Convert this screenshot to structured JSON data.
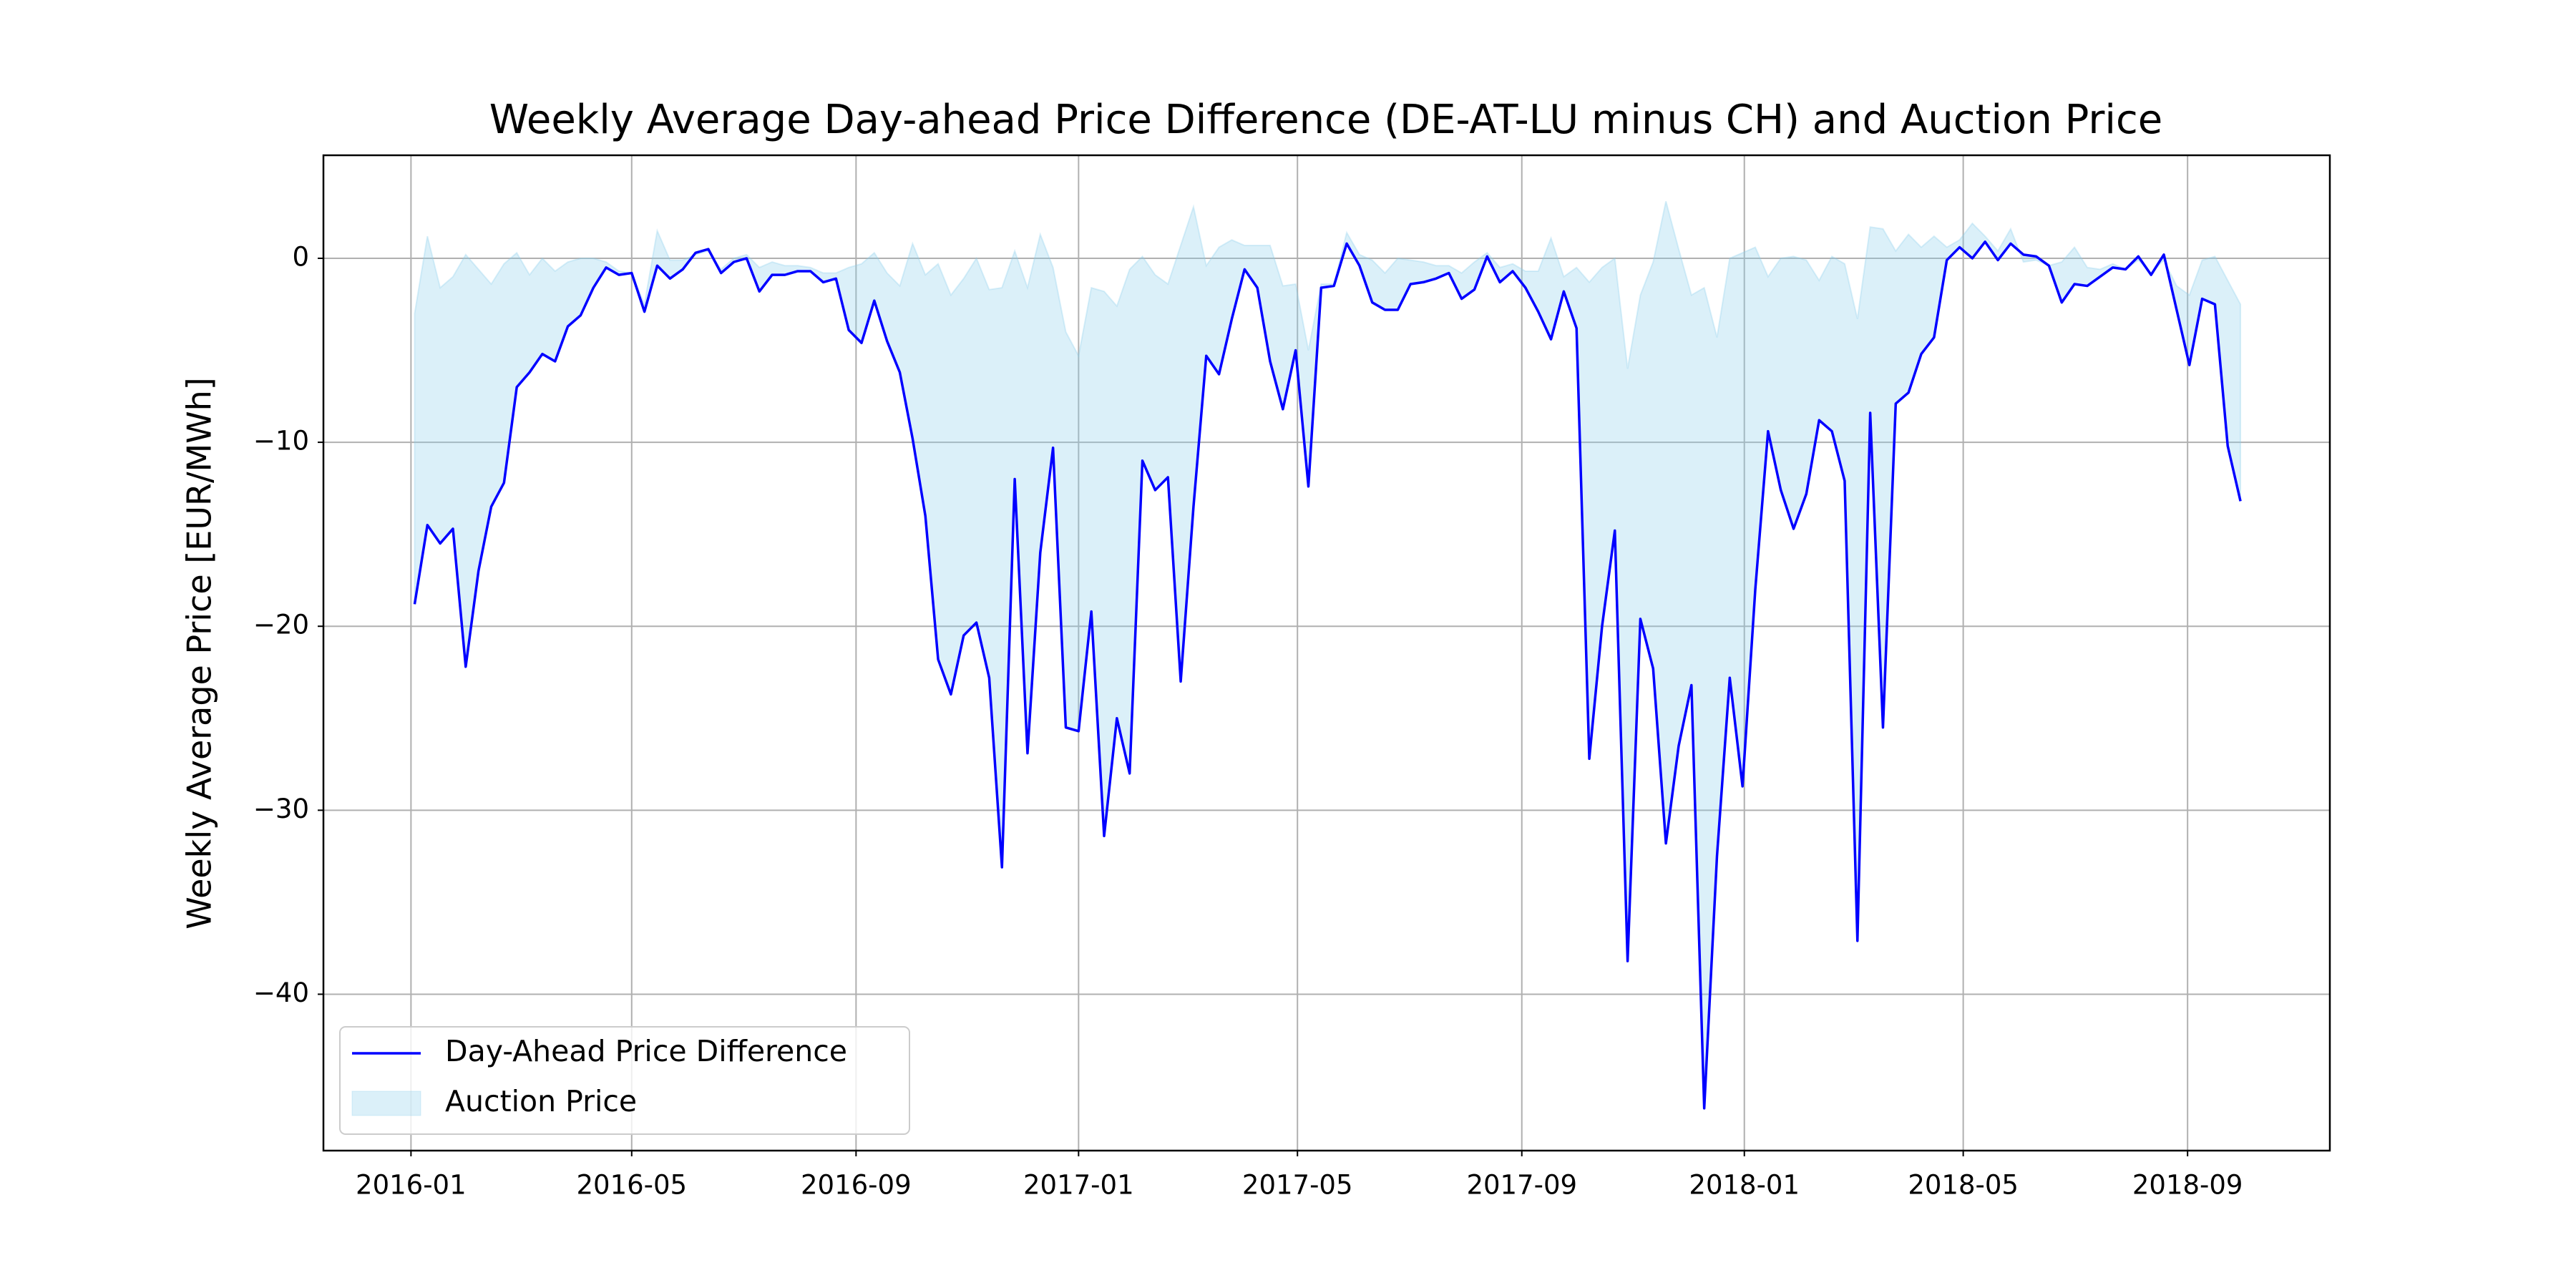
{
  "chart_data": {
    "type": "line",
    "title": "Weekly Average Day-ahead Price Difference (DE-AT-LU minus CH) and Auction Price",
    "y_label": "Weekly Average Price [EUR/MWh]",
    "x": [
      "2016-01-03",
      "2016-01-10",
      "2016-01-17",
      "2016-01-24",
      "2016-01-31",
      "2016-02-07",
      "2016-02-14",
      "2016-02-21",
      "2016-02-28",
      "2016-03-06",
      "2016-03-13",
      "2016-03-20",
      "2016-03-27",
      "2016-04-03",
      "2016-04-10",
      "2016-04-17",
      "2016-04-24",
      "2016-05-01",
      "2016-05-08",
      "2016-05-15",
      "2016-05-22",
      "2016-05-29",
      "2016-06-05",
      "2016-06-12",
      "2016-06-19",
      "2016-06-26",
      "2016-07-03",
      "2016-07-10",
      "2016-07-17",
      "2016-07-24",
      "2016-07-31",
      "2016-08-07",
      "2016-08-14",
      "2016-08-21",
      "2016-08-28",
      "2016-09-04",
      "2016-09-11",
      "2016-09-18",
      "2016-09-25",
      "2016-10-02",
      "2016-10-09",
      "2016-10-16",
      "2016-10-23",
      "2016-10-30",
      "2016-11-06",
      "2016-11-13",
      "2016-11-20",
      "2016-11-27",
      "2016-12-04",
      "2016-12-11",
      "2016-12-18",
      "2016-12-25",
      "2017-01-01",
      "2017-01-08",
      "2017-01-15",
      "2017-01-22",
      "2017-01-29",
      "2017-02-05",
      "2017-02-12",
      "2017-02-19",
      "2017-02-26",
      "2017-03-05",
      "2017-03-12",
      "2017-03-19",
      "2017-03-26",
      "2017-04-02",
      "2017-04-09",
      "2017-04-16",
      "2017-04-23",
      "2017-04-30",
      "2017-05-07",
      "2017-05-14",
      "2017-05-21",
      "2017-05-28",
      "2017-06-04",
      "2017-06-11",
      "2017-06-18",
      "2017-06-25",
      "2017-07-02",
      "2017-07-09",
      "2017-07-16",
      "2017-07-23",
      "2017-07-30",
      "2017-08-06",
      "2017-08-13",
      "2017-08-20",
      "2017-08-27",
      "2017-09-03",
      "2017-09-10",
      "2017-09-17",
      "2017-09-24",
      "2017-10-01",
      "2017-10-08",
      "2017-10-15",
      "2017-10-22",
      "2017-10-29",
      "2017-11-05",
      "2017-11-12",
      "2017-11-19",
      "2017-11-26",
      "2017-12-03",
      "2017-12-10",
      "2017-12-17",
      "2017-12-24",
      "2017-12-31",
      "2018-01-07",
      "2018-01-14",
      "2018-01-21",
      "2018-01-28",
      "2018-02-04",
      "2018-02-11",
      "2018-02-18",
      "2018-02-25",
      "2018-03-04",
      "2018-03-11",
      "2018-03-18",
      "2018-03-25",
      "2018-04-01",
      "2018-04-08",
      "2018-04-15",
      "2018-04-22",
      "2018-04-29",
      "2018-05-06",
      "2018-05-13",
      "2018-05-20",
      "2018-05-27",
      "2018-06-03",
      "2018-06-10",
      "2018-06-17",
      "2018-06-24",
      "2018-07-01",
      "2018-07-08",
      "2018-07-15",
      "2018-07-22",
      "2018-07-29",
      "2018-08-05",
      "2018-08-12",
      "2018-08-19",
      "2018-08-26",
      "2018-09-02",
      "2018-09-09",
      "2018-09-16",
      "2018-09-23",
      "2018-09-30"
    ],
    "series": [
      {
        "name": "Day-Ahead Price Difference",
        "kind": "line",
        "color": "#0000ff",
        "values": [
          -18.8,
          -14.5,
          -15.5,
          -14.7,
          -22.2,
          -17,
          -13.5,
          -12.2,
          -7,
          -6.2,
          -5.2,
          -5.6,
          -3.7,
          -3.1,
          -1.6,
          -0.5,
          -0.9,
          -0.8,
          -2.9,
          -0.4,
          -1.1,
          -0.6,
          0.3,
          0.5,
          -0.8,
          -0.2,
          0,
          -1.8,
          -0.9,
          -0.9,
          -0.7,
          -0.7,
          -1.3,
          -1.1,
          -3.9,
          -4.6,
          -2.3,
          -4.5,
          -6.2,
          -9.8,
          -14,
          -21.8,
          -23.7,
          -20.5,
          -19.8,
          -22.8,
          -33.1,
          -12,
          -26.9,
          -16,
          -10.3,
          -25.5,
          -25.7,
          -19.2,
          -31.4,
          -25,
          -28,
          -11,
          -12.6,
          -11.9,
          -23,
          -13.5,
          -5.3,
          -6.3,
          -3.3,
          -0.6,
          -1.6,
          -5.6,
          -8.2,
          -5,
          -12.4,
          -1.6,
          -1.5,
          0.8,
          -0.4,
          -2.4,
          -2.8,
          -2.8,
          -1.4,
          -1.3,
          -1.1,
          -0.8,
          -2.2,
          -1.7,
          0.1,
          -1.3,
          -0.7,
          -1.6,
          -2.9,
          -4.4,
          -1.8,
          -3.8,
          -27.2,
          -20,
          -14.8,
          -38.2,
          -19.6,
          -22.3,
          -31.8,
          -26.5,
          -23.2,
          -46.2,
          -32.5,
          -22.8,
          -28.7,
          -18,
          -9.4,
          -12.6,
          -14.7,
          -12.8,
          -8.8,
          -9.4,
          -12.1,
          -37.1,
          -8.4,
          -25.5,
          -7.9,
          -7.3,
          -5.2,
          -4.3,
          -0.1,
          0.6,
          0,
          0.9,
          -0.1,
          0.8,
          0.2,
          0.1,
          -0.4,
          -2.4,
          -1.4,
          -1.5,
          -1,
          -0.5,
          -0.6,
          0.1,
          -0.9,
          0.2,
          -2.8,
          -5.8,
          -2.2,
          -2.5,
          -10.2,
          -13.2
        ]
      },
      {
        "name": "Auction Price",
        "kind": "area",
        "color": "#87ceeb",
        "alpha": 0.3,
        "values": [
          -3,
          1.2,
          -1.6,
          -1,
          0.2,
          -0.6,
          -1.4,
          -0.3,
          0.3,
          -0.9,
          0,
          -0.7,
          -0.2,
          0,
          0,
          -0.2,
          -0.7,
          -0.8,
          -2.5,
          1.5,
          -0.1,
          -0.1,
          0.2,
          0.4,
          -0.6,
          0,
          0.2,
          -0.5,
          -0.2,
          -0.4,
          -0.4,
          -0.5,
          -0.8,
          -0.8,
          -0.5,
          -0.3,
          0.3,
          -0.8,
          -1.5,
          0.8,
          -0.9,
          -0.3,
          -2,
          -1.1,
          0,
          -1.7,
          -1.6,
          0.4,
          -1.6,
          1.3,
          -0.5,
          -4,
          -5.3,
          -1.6,
          -1.8,
          -2.6,
          -0.6,
          0.1,
          -0.9,
          -1.4,
          0.7,
          2.8,
          -0.4,
          0.6,
          1,
          0.7,
          0.7,
          0.7,
          -1.5,
          -1.4,
          -5,
          -1.4,
          -1.4,
          1.4,
          0.2,
          -0.1,
          -0.8,
          0,
          -0.1,
          -0.2,
          -0.4,
          -0.4,
          -0.8,
          -0.2,
          0.3,
          -0.5,
          -0.3,
          -0.7,
          -0.7,
          1.1,
          -1,
          -0.5,
          -1.3,
          -0.5,
          0,
          -6,
          -2,
          -0.2,
          3.1,
          0.5,
          -2,
          -1.6,
          -4.3,
          0,
          0.3,
          0.6,
          -1,
          0,
          0.1,
          -0.1,
          -1.2,
          0.1,
          -0.3,
          -3.3,
          1.7,
          1.6,
          0.4,
          1.3,
          0.6,
          1.2,
          0.6,
          1,
          1.9,
          1.2,
          0.4,
          1.6,
          -0.2,
          -0.1,
          -0.4,
          -0.2,
          0.6,
          -0.5,
          -0.6,
          -0.3,
          -0.6,
          -0.1,
          -0.8,
          -0.1,
          -1.5,
          -2,
          -0.1,
          0.1,
          -1.2,
          -2.5
        ]
      }
    ],
    "xlim": [
      "2015-11-14",
      "2018-11-18"
    ],
    "xticks": [
      "2016-01",
      "2016-05",
      "2016-09",
      "2017-01",
      "2017-05",
      "2017-09",
      "2018-01",
      "2018-05",
      "2018-09"
    ],
    "ylim": [
      -48.5,
      5.6
    ],
    "yticks": [
      0,
      {
        "value": -10,
        "label": "−10"
      },
      {
        "value": -20,
        "label": "−20"
      },
      {
        "value": -30,
        "label": "−30"
      },
      {
        "value": -40,
        "label": "−40"
      }
    ],
    "grid": true,
    "legend": "lower left"
  }
}
